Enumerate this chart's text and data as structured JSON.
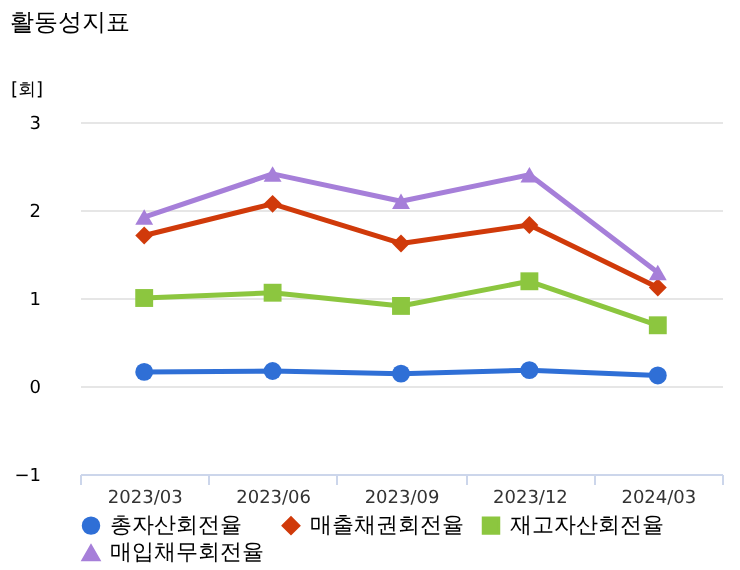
{
  "chart_data": {
    "type": "line",
    "title": "활동성지표",
    "ylabel": "[회]",
    "categories": [
      "2023/03",
      "2023/06",
      "2023/09",
      "2023/12",
      "2024/03"
    ],
    "series": [
      {
        "name": "총자산회전율",
        "color": "#2f6fd6",
        "marker": "circle",
        "values": [
          0.16,
          0.17,
          0.14,
          0.18,
          0.12
        ]
      },
      {
        "name": "매출채권회전율",
        "color": "#d03a0a",
        "marker": "diamond",
        "values": [
          1.71,
          2.07,
          1.62,
          1.83,
          1.12
        ]
      },
      {
        "name": "재고자산회전율",
        "color": "#8cc63f",
        "marker": "square",
        "values": [
          1.0,
          1.06,
          0.91,
          1.19,
          0.69
        ]
      },
      {
        "name": "매입채무회전율",
        "color": "#a67fd9",
        "marker": "triangle",
        "values": [
          1.92,
          2.41,
          2.1,
          2.4,
          1.29
        ]
      }
    ],
    "ylim": [
      -1,
      3
    ],
    "yticks": [
      -1,
      0,
      1,
      2,
      3
    ],
    "grid": "y",
    "legend": "bottom"
  }
}
